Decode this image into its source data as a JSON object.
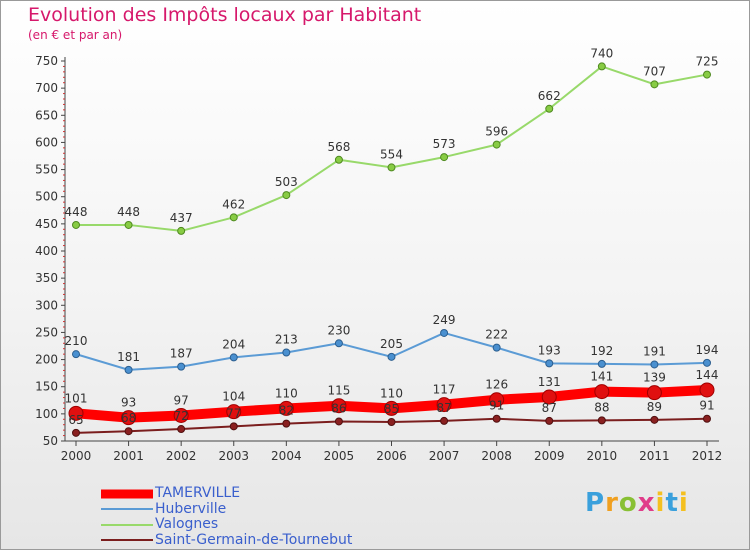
{
  "chart_data": {
    "type": "line",
    "title": "Evolution des Impôts locaux par Habitant",
    "subtitle": "(en € et par an)",
    "xlabel": "",
    "ylabel": "",
    "x": [
      "2000",
      "2001",
      "2002",
      "2003",
      "2004",
      "2005",
      "2006",
      "2007",
      "2008",
      "2009",
      "2010",
      "2011",
      "2012"
    ],
    "ylim": [
      50,
      750
    ],
    "yticks": [
      50,
      100,
      150,
      200,
      250,
      300,
      350,
      400,
      450,
      500,
      550,
      600,
      650,
      700,
      750
    ],
    "grid": false,
    "legend_position": "bottom-left",
    "series": [
      {
        "name": "TAMERVILLE",
        "color": "#ff0000",
        "values": [
          101,
          93,
          97,
          104,
          110,
          115,
          110,
          117,
          126,
          131,
          141,
          139,
          144
        ]
      },
      {
        "name": "Huberville",
        "color": "#5b9bd5",
        "values": [
          210,
          181,
          187,
          204,
          213,
          230,
          205,
          249,
          222,
          193,
          192,
          191,
          194
        ]
      },
      {
        "name": "Valognes",
        "color": "#98d96a",
        "values": [
          448,
          448,
          437,
          462,
          503,
          568,
          554,
          573,
          596,
          662,
          740,
          707,
          725
        ]
      },
      {
        "name": "Saint-Germain-de-Tournebut",
        "color": "#7b1e1e",
        "values": [
          65,
          68,
          72,
          77,
          82,
          86,
          85,
          87,
          91,
          87,
          88,
          89,
          91
        ]
      }
    ]
  },
  "brand": {
    "p": "P",
    "r": "r",
    "o": "o",
    "x": "x",
    "i": "i",
    "t": "t",
    "i2": "i"
  }
}
